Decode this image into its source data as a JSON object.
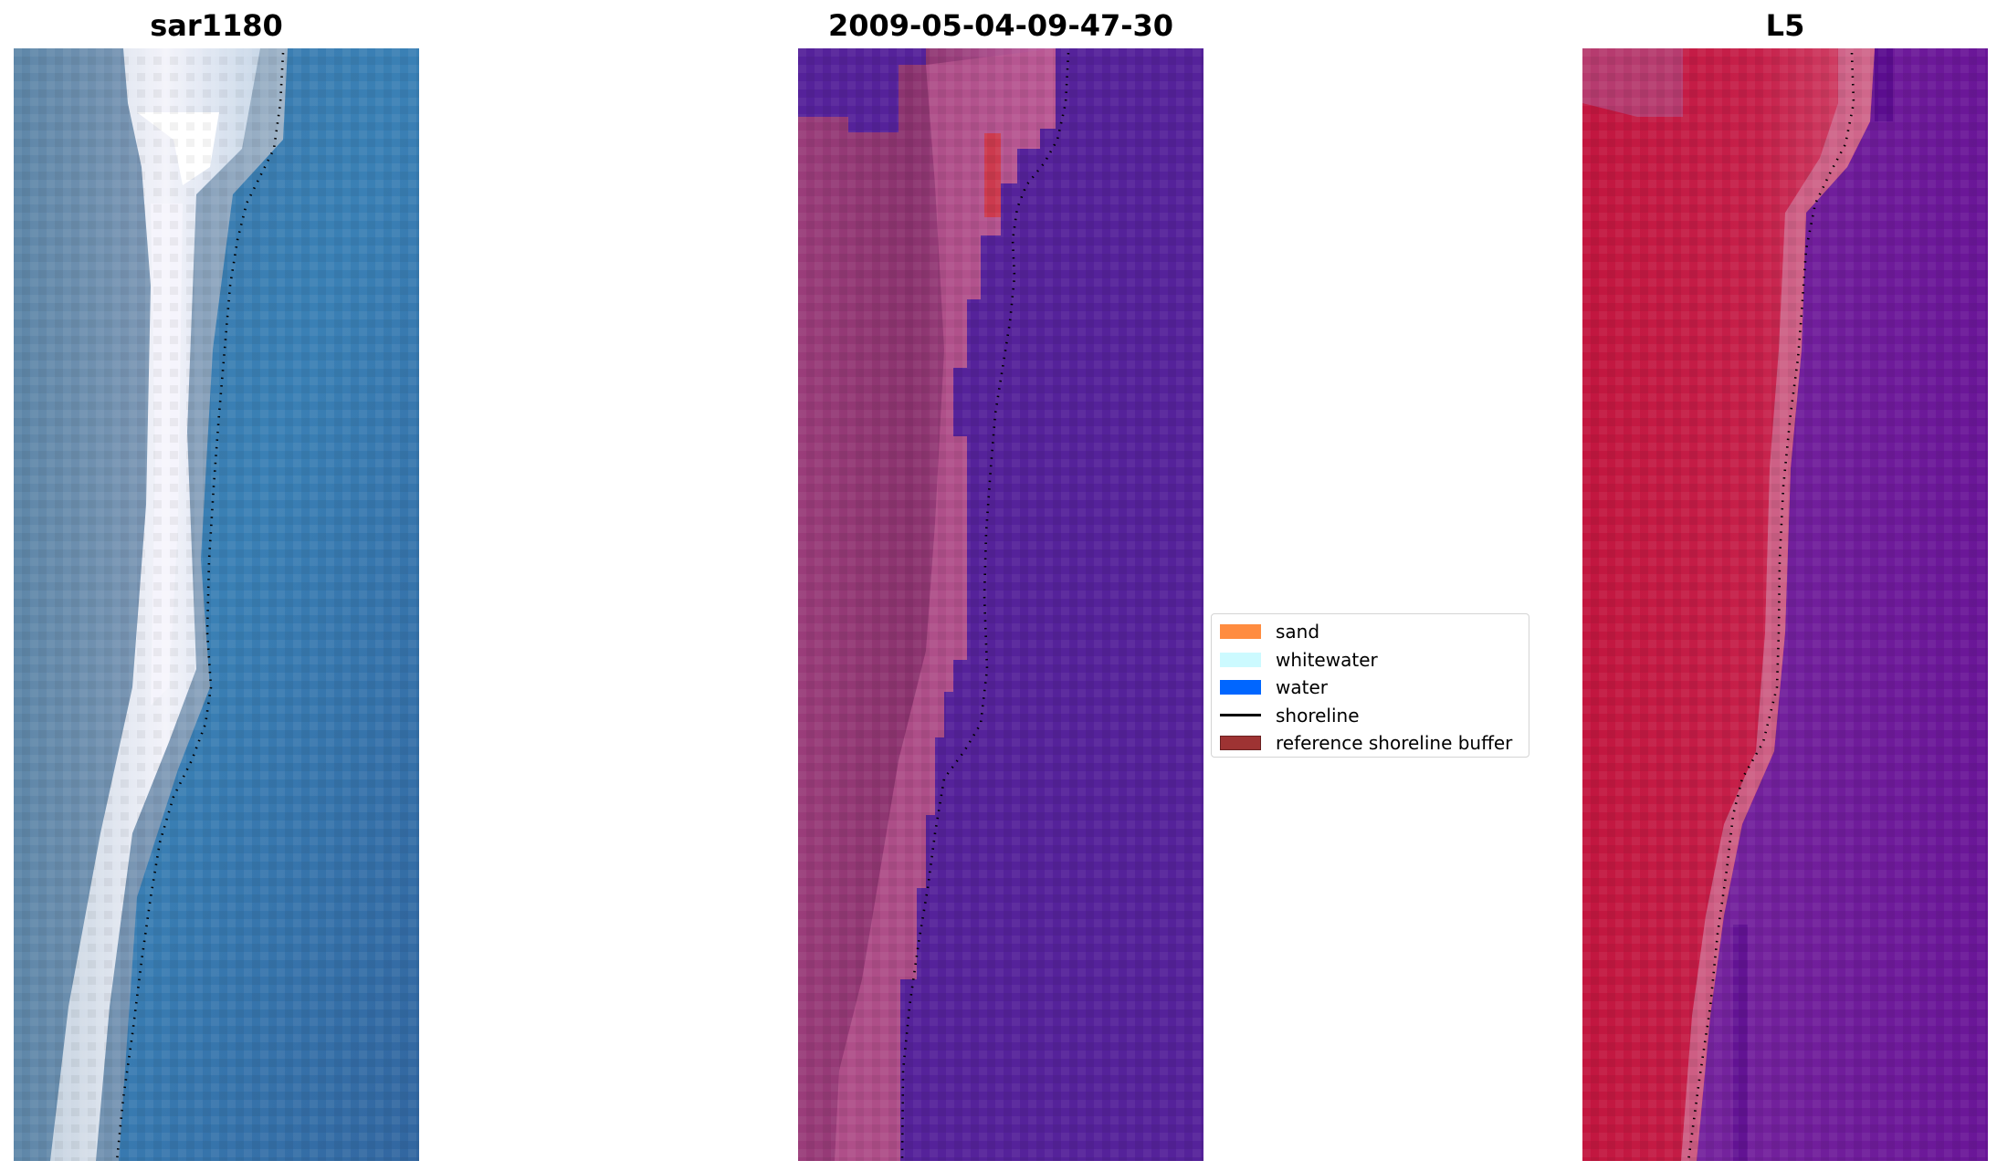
{
  "panels": [
    {
      "title": "sar1180",
      "image": "true-color satellite image"
    },
    {
      "title": "2009-05-04-09-47-30",
      "image": "classified image overlay"
    },
    {
      "title": "L5",
      "image": "false-color index image"
    }
  ],
  "legend": {
    "items": [
      {
        "label": "sand",
        "type": "patch",
        "color": "#ff8c40"
      },
      {
        "label": "whitewater",
        "type": "patch",
        "color": "#ccfaff"
      },
      {
        "label": "water",
        "type": "patch",
        "color": "#0066ff"
      },
      {
        "label": "shoreline",
        "type": "line",
        "color": "#000000"
      },
      {
        "label": "reference shoreline buffer",
        "type": "patch",
        "color": "#9e3333"
      }
    ]
  },
  "colors": {
    "panel1_water": "#3a78ab",
    "panel2_water": "#55229a",
    "panel2_sand": "#b0508a",
    "panel2_buffer": "#cc3a4e",
    "panel3_land": "#c81c48",
    "panel3_water": "#6f1a9a",
    "shoreline_dots": "#000000"
  }
}
